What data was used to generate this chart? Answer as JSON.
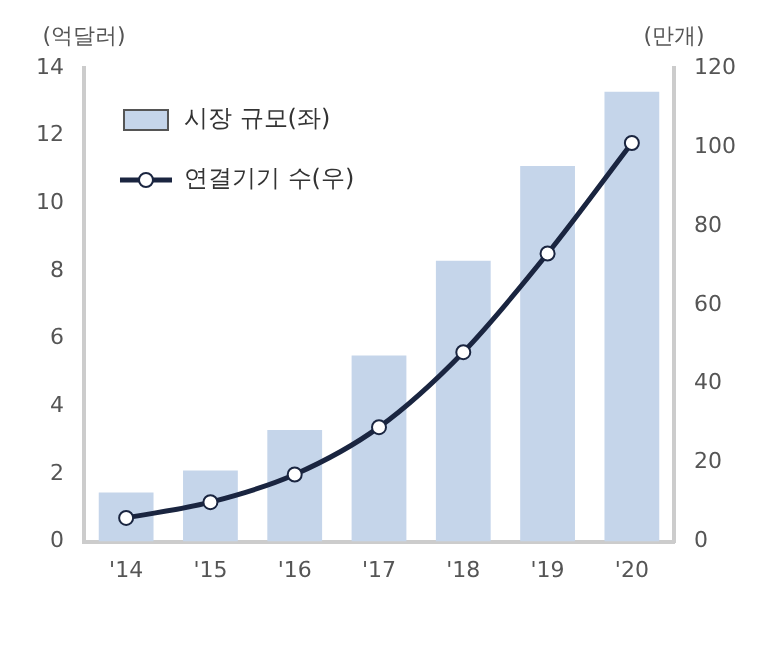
{
  "chart_data": {
    "type": "bar",
    "ylabel": "(억달러)",
    "y2label": "(만개)",
    "categories": [
      "'14",
      "'15",
      "'16",
      "'17",
      "'18",
      "'19",
      "'20"
    ],
    "series": [
      {
        "name": "시장 규모(좌)",
        "color": "#c5d5ea",
        "values": [
          1.45,
          2.1,
          3.3,
          5.5,
          8.3,
          11.1,
          13.3
        ]
      },
      {
        "name": "연결기기 수(우)",
        "type": "line",
        "axis": "y2",
        "color": "#1a2540",
        "marker": "circle",
        "values": [
          6,
          10,
          17,
          29,
          48,
          73,
          101
        ]
      }
    ],
    "ylim": [
      0,
      14
    ],
    "yticks": [
      0,
      2,
      4,
      6,
      8,
      10,
      12,
      14
    ],
    "y2lim": [
      0,
      120
    ],
    "y2ticks": [
      0,
      20,
      40,
      60,
      80,
      100,
      120
    ],
    "grid": false,
    "legend": "top left"
  }
}
